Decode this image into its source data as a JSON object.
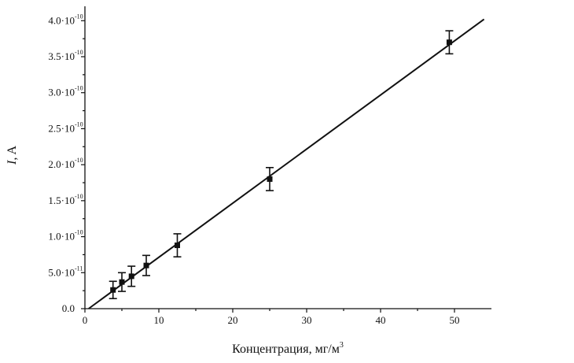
{
  "chart_data": {
    "type": "scatter",
    "xlabel": "Концентрация, мг/м",
    "xlabel_sup": "3",
    "ylabel_italic": "I",
    "ylabel_rest": ", A",
    "xlim": [
      0,
      55
    ],
    "ylim": [
      0,
      4.2e-10
    ],
    "x_ticks": [
      {
        "value": 0,
        "label": "0"
      },
      {
        "value": 10,
        "label": "10"
      },
      {
        "value": 20,
        "label": "20"
      },
      {
        "value": 30,
        "label": "30"
      },
      {
        "value": 40,
        "label": "40"
      },
      {
        "value": 50,
        "label": "50"
      }
    ],
    "y_ticks": [
      {
        "value": 0,
        "mant": "0.0",
        "exp": ""
      },
      {
        "value": 5e-11,
        "mant": "5.0·10",
        "exp": "-11"
      },
      {
        "value": 1e-10,
        "mant": "1.0·10",
        "exp": "-10"
      },
      {
        "value": 1.5e-10,
        "mant": "1.5·10",
        "exp": "-10"
      },
      {
        "value": 2e-10,
        "mant": "2.0·10",
        "exp": "-10"
      },
      {
        "value": 2.5e-10,
        "mant": "2.5·10",
        "exp": "-10"
      },
      {
        "value": 3e-10,
        "mant": "3.0·10",
        "exp": "-10"
      },
      {
        "value": 3.5e-10,
        "mant": "3.5·10",
        "exp": "-10"
      },
      {
        "value": 4e-10,
        "mant": "4.0·10",
        "exp": "-10"
      }
    ],
    "points": [
      {
        "x": 3.8,
        "y": 2.6e-11,
        "err": 1.2e-11
      },
      {
        "x": 5.0,
        "y": 3.7e-11,
        "err": 1.3e-11
      },
      {
        "x": 6.3,
        "y": 4.5e-11,
        "err": 1.4e-11
      },
      {
        "x": 8.3,
        "y": 6e-11,
        "err": 1.4e-11
      },
      {
        "x": 12.5,
        "y": 8.8e-11,
        "err": 1.6e-11
      },
      {
        "x": 25.0,
        "y": 1.8e-10,
        "err": 1.6e-11
      },
      {
        "x": 49.3,
        "y": 3.7e-10,
        "err": 1.6e-11
      }
    ],
    "fit_line": {
      "x": [
        0.5,
        54
      ],
      "y": [
        0,
        4.02e-10
      ]
    }
  }
}
